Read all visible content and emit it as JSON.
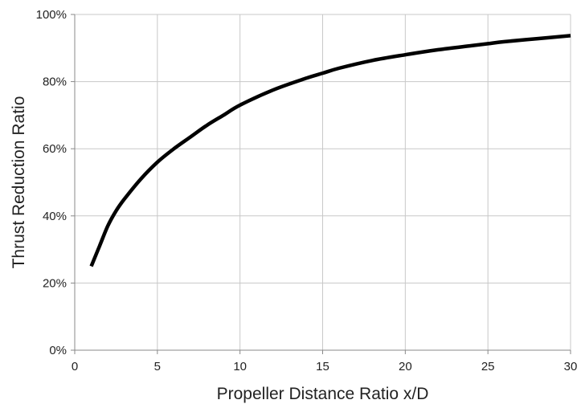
{
  "chart_data": {
    "type": "line",
    "title": "",
    "xlabel": "Propeller Distance Ratio x/D",
    "ylabel": "Thrust Reduction Ratio",
    "xlim": [
      0,
      30
    ],
    "ylim": [
      0,
      100
    ],
    "x_ticks": [
      "0",
      "5",
      "10",
      "15",
      "20",
      "25",
      "30"
    ],
    "y_ticks": [
      "0%",
      "20%",
      "40%",
      "60%",
      "80%",
      "100%"
    ],
    "grid": true,
    "legend": "none",
    "series": [
      {
        "color": "#000000",
        "x": [
          1,
          1.5,
          2,
          2.5,
          3,
          4,
          5,
          6,
          7,
          8,
          9,
          10,
          12,
          14,
          15,
          16,
          18,
          20,
          22,
          24,
          25,
          26,
          28,
          30
        ],
        "y": [
          25,
          31,
          37,
          41.5,
          45,
          51,
          56,
          60,
          63.5,
          67,
          70,
          73,
          77.5,
          81,
          82.5,
          84,
          86.3,
          88,
          89.5,
          90.7,
          91.3,
          91.9,
          92.8,
          93.7
        ]
      }
    ]
  }
}
